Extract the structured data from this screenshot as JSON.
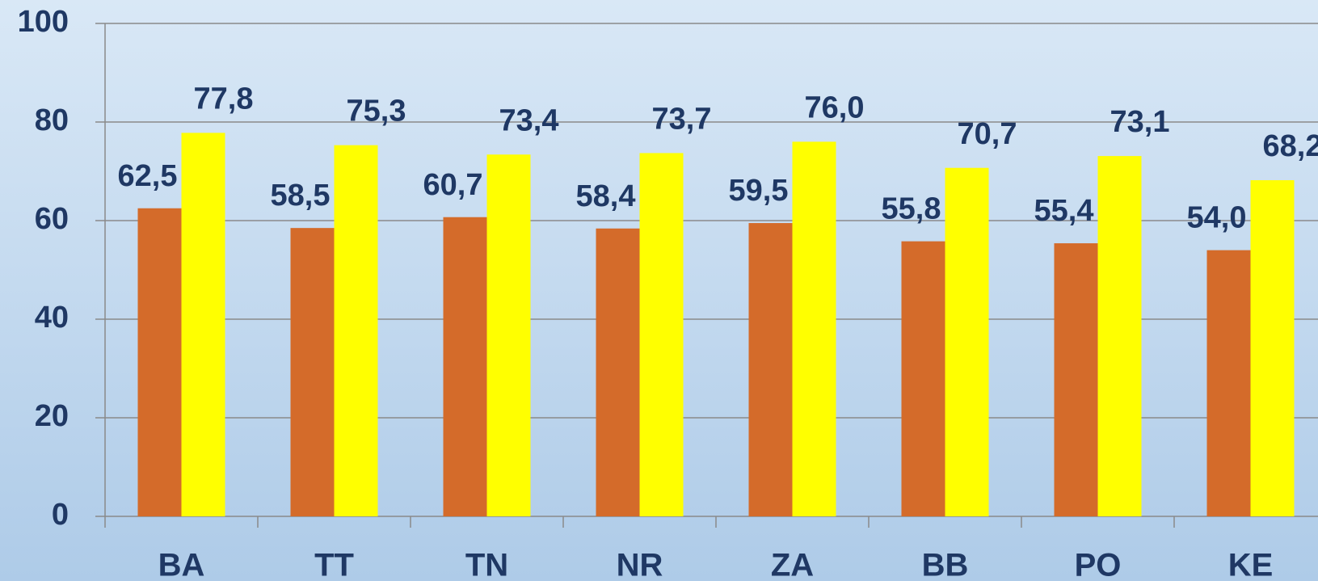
{
  "chart_data": {
    "type": "bar",
    "categories": [
      "BA",
      "TT",
      "TN",
      "NR",
      "ZA",
      "BB",
      "PO",
      "KE"
    ],
    "series": [
      {
        "color": "#d46b2a",
        "values": [
          62.5,
          58.5,
          60.7,
          58.4,
          59.5,
          55.8,
          55.4,
          54.0
        ],
        "value_labels": [
          "62,5",
          "58,5",
          "60,7",
          "58,4",
          "59,5",
          "55,8",
          "55,4",
          "54,0"
        ]
      },
      {
        "color": "#ffff00",
        "values": [
          77.8,
          75.3,
          73.4,
          73.7,
          76.0,
          70.7,
          73.1,
          68.2
        ],
        "value_labels": [
          "77,8",
          "75,3",
          "73,4",
          "73,7",
          "76,0",
          "70,7",
          "73,1",
          "68,2"
        ]
      }
    ],
    "ylim": [
      0,
      100
    ],
    "yticks": [
      0,
      20,
      40,
      60,
      80,
      100
    ],
    "grid": true
  }
}
